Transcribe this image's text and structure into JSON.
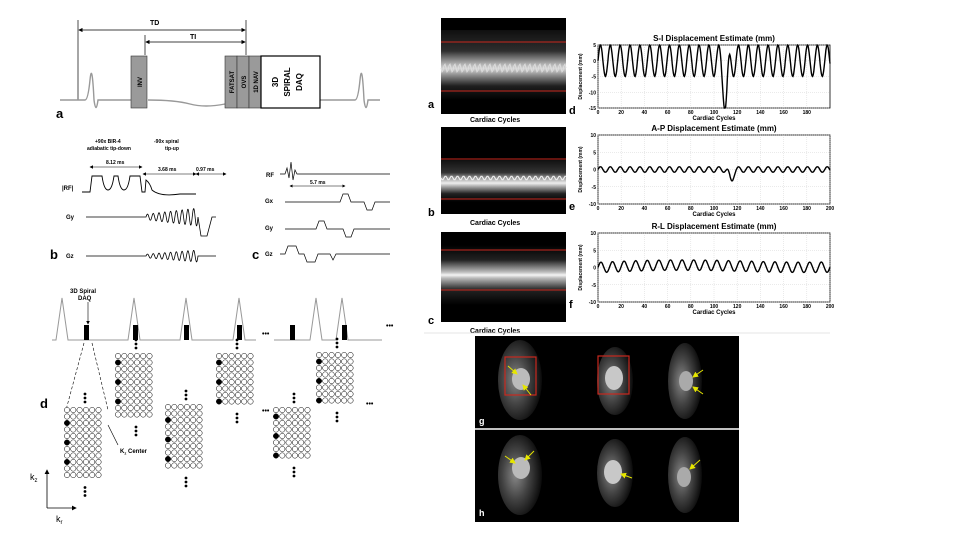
{
  "diagram_a": {
    "td": "TD",
    "ti": "TI",
    "inv": "INV",
    "fatsat": "FATSAT",
    "ovs": "OVS",
    "nav": "1D NAV",
    "spiral_line1": "3D",
    "spiral_line2": "SPIRAL",
    "spiral_line3": "DAQ",
    "letter": "a"
  },
  "diagram_b": {
    "tipdown_line1": "+90x BIR-4",
    "tipdown_line2": "adiabatic tip-down",
    "tipup_line1": "-90x spiral",
    "tipup_line2": "tip-up",
    "t1": "8.12 ms",
    "t2": "3.68 ms",
    "t3": "0.97 ms",
    "rf": "|RF|",
    "gy": "Gy",
    "gz": "Gz",
    "letter": "b"
  },
  "diagram_c": {
    "rf": "RF",
    "t": "5.7 ms",
    "gx": "Gx",
    "gy": "Gy",
    "gz": "Gz",
    "letter": "c"
  },
  "diagram_d": {
    "daq_line1": "3D Spiral",
    "daq_line2": "DAQ",
    "kz_center": "K",
    "kz_center_sub": "z",
    "kz_center_rest": " Center",
    "ellipsis": "•••",
    "axis_kz": "k",
    "axis_kz_sub": "z",
    "axis_kr": "k",
    "axis_kr_sub": "r",
    "letter": "d"
  },
  "cardiac_panels": [
    {
      "letter": "a",
      "caption": "Cardiac Cycles"
    },
    {
      "letter": "b",
      "caption": "Cardiac Cycles"
    },
    {
      "letter": "c",
      "caption": "Cardiac Cycles"
    }
  ],
  "chart_data": [
    {
      "type": "line",
      "panel": "d",
      "title": "S-I Displacement Estimate (mm)",
      "xlabel": "Cardiac Cycles",
      "ylabel": "Displacement (mm)",
      "xlim": [
        0,
        200
      ],
      "ylim": [
        -15,
        5
      ],
      "xticks": [
        "0",
        "20",
        "40",
        "60",
        "80",
        "100",
        "120",
        "140",
        "160",
        "180"
      ],
      "yticks": [
        "5",
        "0",
        "-5",
        "-10",
        "-15"
      ],
      "baseline": 0,
      "amplitude": 5,
      "period": 8.5,
      "events": [
        {
          "x": 110,
          "y": -13
        }
      ]
    },
    {
      "type": "line",
      "panel": "e",
      "title": "A-P Displacement Estimate (mm)",
      "xlabel": "Cardiac Cycles",
      "ylabel": "Displacement (mm)",
      "xlim": [
        0,
        200
      ],
      "ylim": [
        -10,
        10
      ],
      "xticks": [
        "0",
        "20",
        "40",
        "60",
        "80",
        "100",
        "120",
        "140",
        "160",
        "180",
        "200"
      ],
      "yticks": [
        "10",
        "5",
        "0",
        "-5",
        "-10"
      ],
      "baseline": 0,
      "amplitude": 0.8,
      "period": 8.5,
      "events": [
        {
          "x": 115,
          "y": -3
        }
      ]
    },
    {
      "type": "line",
      "panel": "f",
      "title": "R-L Displacement Estimate (mm)",
      "xlabel": "Cardiac Cycles",
      "ylabel": "Displacement (mm)",
      "xlim": [
        0,
        200
      ],
      "ylim": [
        -10,
        10
      ],
      "xticks": [
        "0",
        "20",
        "40",
        "60",
        "80",
        "100",
        "120",
        "140",
        "160",
        "180",
        "200"
      ],
      "yticks": [
        "10",
        "5",
        "0",
        "-5",
        "-10"
      ],
      "baseline": 0,
      "amplitude": 1.5,
      "period": 10,
      "events": []
    }
  ],
  "mri": {
    "row_g": "g",
    "row_h": "h"
  },
  "colors": {
    "red": "#c8281e",
    "arrow": "#e6e600",
    "grey_block": "#999999"
  }
}
